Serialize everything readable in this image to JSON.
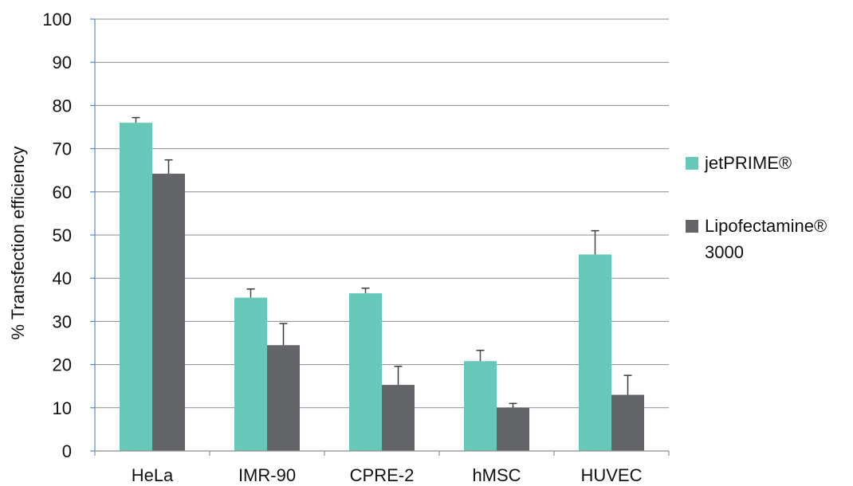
{
  "chart_data": {
    "type": "bar",
    "categories": [
      "HeLa",
      "IMR-90",
      "CPRE-2",
      "hMSC",
      "HUVEC"
    ],
    "series": [
      {
        "name": "jetPRIME®",
        "color": "#66c9b8",
        "values": [
          76,
          35.5,
          36.5,
          20.8,
          45.5
        ],
        "error": [
          1.2,
          2.0,
          1.2,
          2.5,
          5.5
        ]
      },
      {
        "name": "Lipofectamine® 3000",
        "color": "#646569",
        "values": [
          64.2,
          24.5,
          15.3,
          10,
          13
        ],
        "error": [
          3.2,
          5.0,
          4.3,
          1.0,
          4.5
        ]
      }
    ],
    "ylabel": "% Transfection efficiency",
    "ylim": [
      0,
      100
    ],
    "yticks": [
      0,
      10,
      20,
      30,
      40,
      50,
      60,
      70,
      80,
      90,
      100
    ],
    "grid": true,
    "legend": "right",
    "legend_lines": [
      [
        "jetPRIME®"
      ],
      [
        "Lipofectamine®",
        "3000"
      ]
    ]
  }
}
